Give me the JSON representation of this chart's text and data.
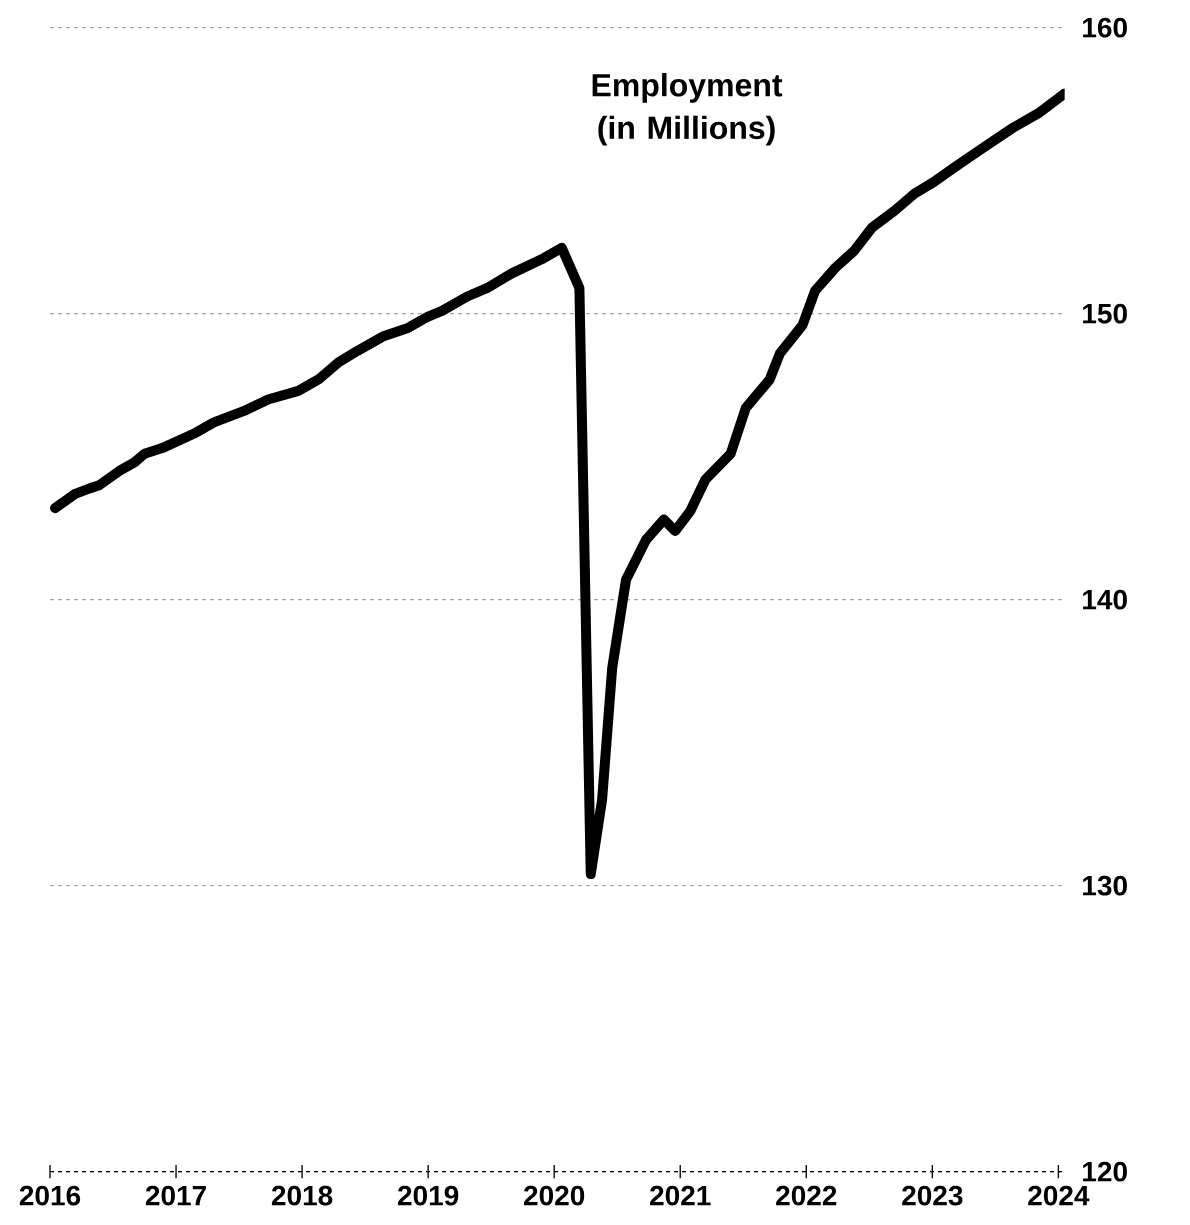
{
  "chart_data": {
    "type": "line",
    "title": "Employment (in Millions)",
    "x": [
      2016.04,
      2016.2,
      2016.32,
      2016.39,
      2016.55,
      2016.67,
      2016.75,
      2016.89,
      2017.14,
      2017.3,
      2017.54,
      2017.73,
      2017.97,
      2018.13,
      2018.29,
      2018.44,
      2018.64,
      2018.84,
      2019.0,
      2019.11,
      2019.31,
      2019.47,
      2019.66,
      2019.9,
      2020.06,
      2020.2,
      2020.29,
      2020.38,
      2020.46,
      2020.57,
      2020.73,
      2020.87,
      2020.96,
      2021.08,
      2021.2,
      2021.4,
      2021.52,
      2021.71,
      2021.79,
      2021.97,
      2022.07,
      2022.23,
      2022.38,
      2022.52,
      2022.7,
      2022.86,
      2023.01,
      2023.17,
      2023.37,
      2023.64,
      2023.84,
      2024.05
    ],
    "values": [
      143.2,
      143.7,
      143.9,
      144.0,
      144.5,
      144.8,
      145.1,
      145.3,
      145.8,
      146.2,
      146.6,
      147.0,
      147.3,
      147.7,
      148.3,
      148.7,
      149.2,
      149.5,
      149.9,
      150.1,
      150.6,
      150.9,
      151.4,
      151.9,
      152.3,
      150.9,
      130.4,
      133.0,
      137.6,
      140.7,
      142.1,
      142.8,
      142.4,
      143.1,
      144.2,
      145.1,
      146.7,
      147.7,
      148.6,
      149.6,
      150.8,
      151.6,
      152.2,
      153.0,
      153.6,
      154.2,
      154.6,
      155.1,
      155.7,
      156.5,
      157.0,
      157.7
    ],
    "color": "#000000",
    "xlim": [
      2016,
      2024.05
    ],
    "xticks": [
      2016,
      2017,
      2018,
      2019,
      2020,
      2021,
      2022,
      2023,
      2024
    ],
    "ylim": [
      120,
      160
    ],
    "yticks": [
      120,
      130,
      140,
      150,
      160
    ],
    "grid": "y"
  }
}
